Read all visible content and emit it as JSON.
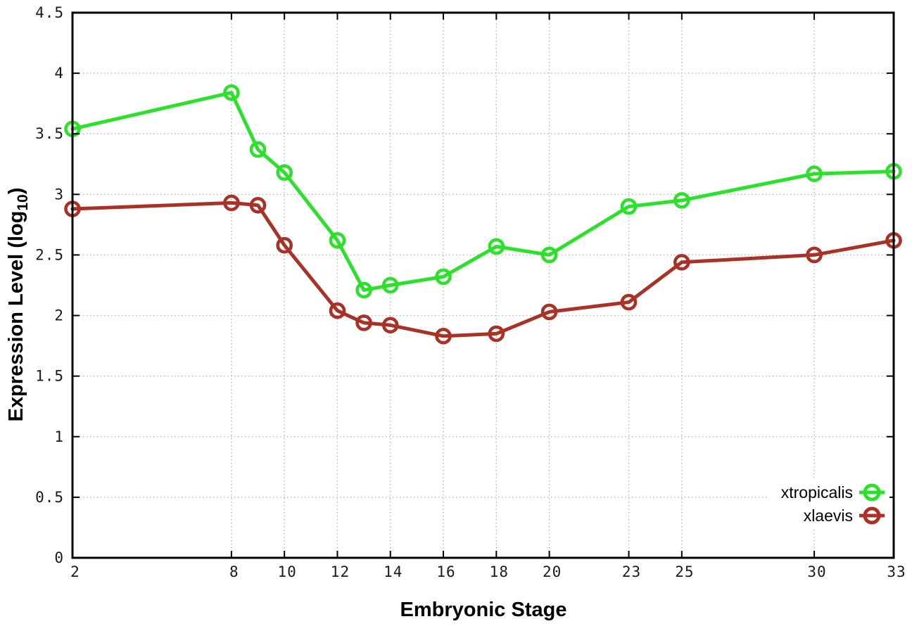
{
  "chart_data": {
    "type": "line",
    "title": "",
    "xlabel": "Embryonic Stage",
    "ylabel": "Expression Level (log10)",
    "ylabel_sub": "10",
    "xlim": [
      2,
      33
    ],
    "ylim": [
      0,
      4.5
    ],
    "x_ticks": [
      2,
      8,
      10,
      12,
      14,
      16,
      18,
      20,
      23,
      25,
      30,
      33
    ],
    "y_ticks": [
      0,
      0.5,
      1,
      1.5,
      2,
      2.5,
      3,
      3.5,
      4,
      4.5
    ],
    "grid": true,
    "legend_position": "bottom-right",
    "x": [
      2,
      8,
      9,
      10,
      12,
      13,
      14,
      16,
      18,
      20,
      23,
      25,
      30,
      33
    ],
    "series": [
      {
        "name": "xtropicalis",
        "color": "#2ce02c",
        "values": [
          3.54,
          3.84,
          3.37,
          3.18,
          2.62,
          2.21,
          2.25,
          2.32,
          2.57,
          2.5,
          2.9,
          2.95,
          3.17,
          3.19
        ]
      },
      {
        "name": "xlaevis",
        "color": "#a93227",
        "values": [
          2.88,
          2.93,
          2.91,
          2.58,
          2.04,
          1.94,
          1.92,
          1.83,
          1.85,
          2.03,
          2.11,
          2.44,
          2.5,
          2.62
        ]
      }
    ]
  },
  "colors": {
    "background": "#ffffff",
    "plot_border": "#000000",
    "grid": "#b5b5b5",
    "tick": "#000000",
    "tick_text": "#1a1a1a",
    "legend_background": "#ffffff"
  }
}
